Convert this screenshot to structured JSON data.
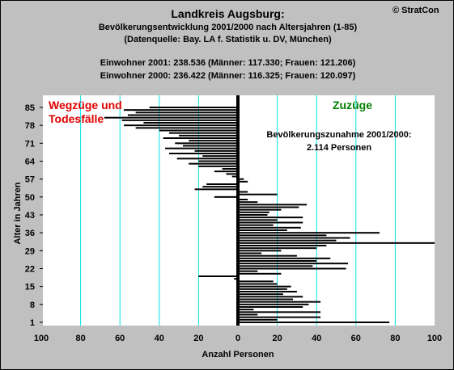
{
  "header": {
    "title": "Landkreis Augsburg:",
    "subtitle": "Bevölkerungsentwicklung 2001/2000 nach Altersjahren (1-85)",
    "source": "(Datenquelle: Bay. LA f. Statistik u. DV, München)",
    "info_line1": "Einwohner 2001: 238.536  (Männer: 117.330; Frauen: 121.206)",
    "info_line2": "Einwohner 2000: 236.422  (Männer: 116.325; Frauen: 120.097)",
    "copyright": "© StratCon"
  },
  "colors": {
    "background": "#c0c0c0",
    "plot_background": "#ffffff",
    "grid": "#00e5e5",
    "bars": "#000000",
    "label_left": "#e00000",
    "label_right": "#008000"
  },
  "chart_data": {
    "type": "bar",
    "orientation": "horizontal",
    "xlabel": "Anzahl Personen",
    "ylabel": "Alter in Jahren",
    "xlim": [
      -100,
      100
    ],
    "ylim": [
      1,
      85
    ],
    "x_tick_values": [
      -100,
      -80,
      -60,
      -40,
      -20,
      0,
      20,
      40,
      60,
      80,
      100
    ],
    "x_tick_labels": [
      "100",
      "80",
      "60",
      "40",
      "20",
      "0",
      "20",
      "40",
      "60",
      "80",
      "100"
    ],
    "y_ticks": [
      1,
      8,
      15,
      22,
      29,
      36,
      43,
      50,
      57,
      64,
      71,
      78,
      85
    ],
    "grid": true,
    "label_negative": "Wegzüge und Todesfälle",
    "label_positive": "Zuzüge",
    "annotation_line1": "Bevölkerungszunahme 2001/2000:",
    "annotation_line2": "2.114 Personen",
    "ages": [
      1,
      2,
      3,
      4,
      5,
      6,
      7,
      8,
      9,
      10,
      11,
      12,
      13,
      14,
      15,
      16,
      17,
      18,
      19,
      20,
      21,
      22,
      23,
      24,
      25,
      26,
      27,
      28,
      29,
      30,
      31,
      32,
      33,
      34,
      35,
      36,
      37,
      38,
      39,
      40,
      41,
      42,
      43,
      44,
      45,
      46,
      47,
      48,
      49,
      50,
      51,
      52,
      53,
      54,
      55,
      56,
      57,
      58,
      59,
      60,
      61,
      62,
      63,
      64,
      65,
      66,
      67,
      68,
      69,
      70,
      71,
      72,
      73,
      74,
      75,
      76,
      77,
      78,
      79,
      80,
      81,
      82,
      83,
      84,
      85
    ],
    "values": [
      77,
      20,
      42,
      10,
      42,
      8,
      33,
      36,
      42,
      28,
      33,
      23,
      30,
      25,
      27,
      20,
      18,
      -2,
      -20,
      22,
      10,
      55,
      38,
      56,
      40,
      47,
      30,
      12,
      22,
      40,
      45,
      100,
      50,
      57,
      45,
      72,
      25,
      32,
      18,
      33,
      20,
      33,
      15,
      16,
      22,
      31,
      35,
      10,
      5,
      -12,
      20,
      5,
      -22,
      -18,
      -16,
      5,
      3,
      -3,
      -6,
      -12,
      -8,
      -20,
      -25,
      -20,
      -31,
      -18,
      -35,
      -22,
      -37,
      -28,
      -32,
      -25,
      -38,
      -30,
      -35,
      -40,
      -52,
      -58,
      -48,
      -59,
      -68,
      -56,
      -52,
      -58,
      -45
    ]
  }
}
